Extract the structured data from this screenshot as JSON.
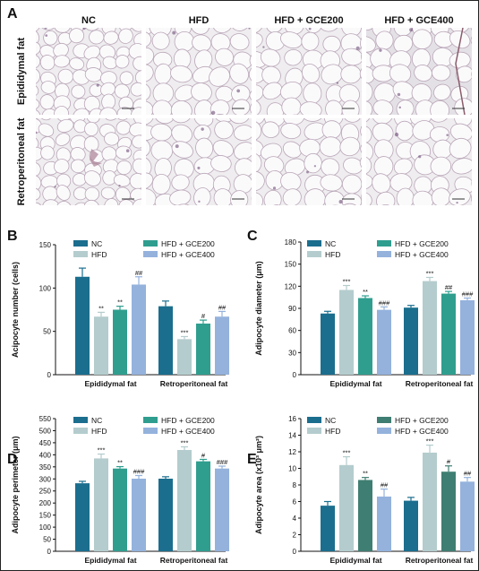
{
  "panel_a": {
    "letter": "A",
    "columns": [
      "NC",
      "HFD",
      "HFD + GCE200",
      "HFD + GCE400"
    ],
    "rows": [
      "Epididymal fat",
      "Retroperitoneal fat"
    ]
  },
  "colors": {
    "NC": "#1b6e8e",
    "HFD": "#b4cccd",
    "HFD + GCE200": "#2f9e8f",
    "HFD + GCE400": "#94b2dc",
    "HFD + GCE200 (E)": "#3f7e72"
  },
  "chart_data": [
    {
      "panel": "B",
      "type": "bar",
      "categories": [
        "Epididymal fat",
        "Retroperitoneal fat"
      ],
      "ylabel": "Acipocyte number (cells)",
      "ylim": [
        0,
        150
      ],
      "yticks": [
        0,
        50,
        100,
        150
      ],
      "legend": "top",
      "series": [
        {
          "name": "NC",
          "values": [
            113,
            79
          ],
          "errors": [
            10,
            6
          ],
          "marks": [
            "",
            ""
          ]
        },
        {
          "name": "HFD",
          "values": [
            67,
            41
          ],
          "errors": [
            5,
            3
          ],
          "marks": [
            "**",
            "***"
          ]
        },
        {
          "name": "HFD + GCE200",
          "values": [
            75,
            59
          ],
          "errors": [
            4,
            4
          ],
          "marks": [
            "**",
            "#"
          ]
        },
        {
          "name": "HFD + GCE400",
          "values": [
            104,
            67
          ],
          "errors": [
            9,
            6
          ],
          "marks": [
            "##",
            "##"
          ]
        }
      ]
    },
    {
      "panel": "C",
      "type": "bar",
      "categories": [
        "Epididymal fat",
        "Retroperitoneal fat"
      ],
      "ylabel": "Adipocyte diameter (μm)",
      "ylim": [
        0,
        180
      ],
      "yticks": [
        0,
        30,
        60,
        90,
        120,
        150,
        180
      ],
      "legend": "top",
      "series": [
        {
          "name": "NC",
          "values": [
            83,
            91
          ],
          "errors": [
            3,
            3
          ],
          "marks": [
            "",
            ""
          ]
        },
        {
          "name": "HFD",
          "values": [
            115,
            127
          ],
          "errors": [
            6,
            5
          ],
          "marks": [
            "***",
            "***"
          ]
        },
        {
          "name": "HFD + GCE200",
          "values": [
            104,
            110
          ],
          "errors": [
            3,
            3
          ],
          "marks": [
            "**",
            "##"
          ]
        },
        {
          "name": "HFD + GCE400",
          "values": [
            88,
            101
          ],
          "errors": [
            4,
            3
          ],
          "marks": [
            "###",
            "###"
          ]
        }
      ]
    },
    {
      "panel": "D",
      "type": "bar",
      "categories": [
        "Epididymal fat",
        "Retroperitoneal fat"
      ],
      "ylabel": "Adipocyte perimeter (μm)",
      "ylim": [
        0,
        550
      ],
      "yticks": [
        0,
        50,
        100,
        150,
        200,
        250,
        300,
        350,
        400,
        450,
        500,
        550
      ],
      "legend": "top",
      "series": [
        {
          "name": "NC",
          "values": [
            282,
            301
          ],
          "errors": [
            8,
            8
          ],
          "marks": [
            "",
            ""
          ]
        },
        {
          "name": "HFD",
          "values": [
            385,
            420
          ],
          "errors": [
            18,
            13
          ],
          "marks": [
            "***",
            "***"
          ]
        },
        {
          "name": "HFD + GCE200",
          "values": [
            343,
            373
          ],
          "errors": [
            8,
            8
          ],
          "marks": [
            "**",
            "#"
          ]
        },
        {
          "name": "HFD + GCE400",
          "values": [
            301,
            343
          ],
          "errors": [
            13,
            10
          ],
          "marks": [
            "###",
            "###"
          ]
        }
      ]
    },
    {
      "panel": "E",
      "type": "bar",
      "categories": [
        "Epididymal fat",
        "Retroperitoneal fat"
      ],
      "ylabel": "Adipocyte area (x10³ μm²)",
      "ylim": [
        0,
        16
      ],
      "yticks": [
        0,
        2,
        4,
        6,
        8,
        10,
        12,
        14,
        16
      ],
      "legend": "top",
      "series": [
        {
          "name": "NC",
          "values": [
            5.5,
            6.1
          ],
          "errors": [
            0.5,
            0.4
          ],
          "marks": [
            "",
            ""
          ]
        },
        {
          "name": "HFD",
          "values": [
            10.4,
            11.9
          ],
          "errors": [
            1.0,
            0.9
          ],
          "marks": [
            "***",
            "***"
          ]
        },
        {
          "name": "HFD + GCE200",
          "values": [
            8.6,
            9.6
          ],
          "errors": [
            0.3,
            0.7
          ],
          "marks": [
            "**",
            "#"
          ]
        },
        {
          "name": "HFD + GCE400",
          "values": [
            6.6,
            8.4
          ],
          "errors": [
            0.9,
            0.5
          ],
          "marks": [
            "##",
            "##"
          ]
        }
      ]
    }
  ]
}
